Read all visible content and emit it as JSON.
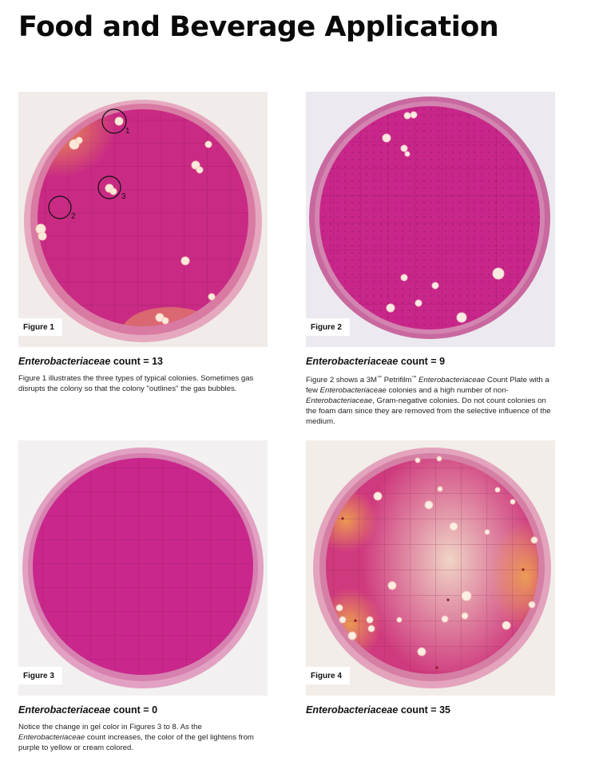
{
  "title": "Food and Beverage Application",
  "figures": [
    {
      "label": "Figure 1",
      "count_organism": "Enterobacteriaceae",
      "count_suffix": " count = 13",
      "desc": [
        "Figure 1 illustrates the three types of typical colonies. Sometimes gas disrupts the colony so that the colony \"outlines\" the gas bubbles."
      ],
      "markers": [
        "1",
        "2",
        "3"
      ],
      "gel_color": "#c92a84",
      "tint_color": "#e88a3c"
    },
    {
      "label": "Figure 2",
      "count_organism": "Enterobacteriaceae",
      "count_suffix": " count = 9",
      "desc_parts": {
        "p1": "Figure 2 shows a 3M",
        "tm1": "™",
        "p2": " Petrifilm",
        "tm2": "™",
        "p3": " ",
        "em1": "Enterobacteriaceae",
        "p4": " Count Plate with a few ",
        "em2": "Enterobacteriaceae",
        "p5": " colonies and a high number of non-",
        "em3": "Enterobacteriaceae",
        "p6": ", Gram-negative colonies. Do not count colonies on the foam dam since they are removed from the selective influence of the medium."
      },
      "gel_color": "#c8268a"
    },
    {
      "label": "Figure 3",
      "count_organism": "Enterobacteriaceae",
      "count_suffix": " count = 0",
      "desc_parts": {
        "p1": "Notice the change in gel color in Figures 3 to 8. As the ",
        "em1": "Enterobacteriaceae",
        "p2": " count increases, the color of the gel lightens from purple to yellow or cream colored."
      },
      "gel_color": "#c9278c"
    },
    {
      "label": "Figure 4",
      "count_organism": "Enterobacteriaceae",
      "count_suffix": " count = 35",
      "gel_color": "#cf3a7e",
      "tint_color": "#e9a04a"
    }
  ]
}
